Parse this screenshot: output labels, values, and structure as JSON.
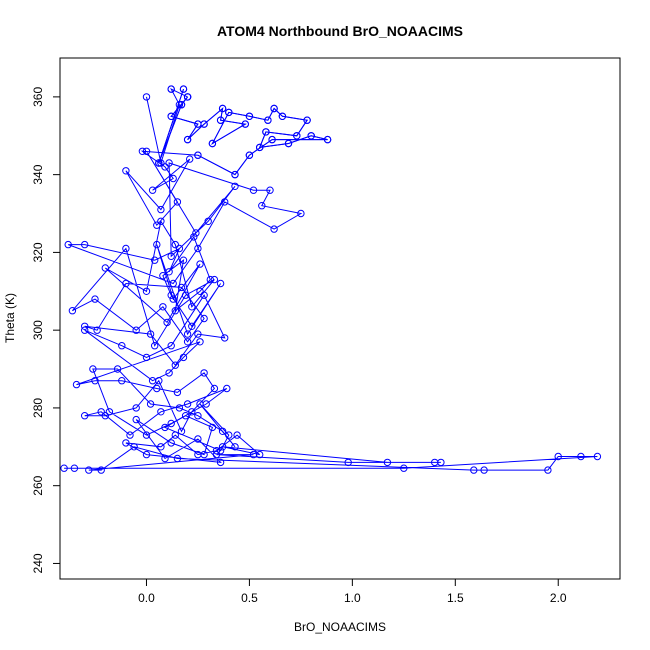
{
  "chart_data": {
    "type": "scatter",
    "title": "ATOM4 Northbound BrO_NOAACIMS",
    "xlabel": "BrO_NOAACIMS",
    "ylabel": "Theta (K)",
    "xlim": [
      -0.42,
      2.3
    ],
    "ylim": [
      236,
      370
    ],
    "x_ticks": [
      0.0,
      0.5,
      1.0,
      1.5,
      2.0
    ],
    "x_tick_labels": [
      "0.0",
      "0.5",
      "1.0",
      "1.5",
      "2.0"
    ],
    "y_ticks": [
      240,
      260,
      280,
      300,
      320,
      340,
      360
    ],
    "y_tick_labels": [
      "240",
      "260",
      "280",
      "300",
      "320",
      "340",
      "360"
    ],
    "marker": "open-circle",
    "connected": true,
    "color": "#0000ff",
    "grid": false,
    "series": [
      {
        "x": [
          0.18,
          0.06,
          0.17,
          0.2,
          0.12,
          0.25,
          0.2,
          0.28,
          0.37,
          0.36,
          0.48,
          0.32,
          0.4,
          0.5,
          0.59,
          0.62,
          0.66,
          0.78,
          0.73,
          0.58,
          0.55,
          0.69,
          0.8,
          0.88,
          0.61,
          0.5,
          0.43,
          0.25,
          -0.02,
          0.09,
          0.13,
          0.03,
          0.21,
          0.07,
          -0.1,
          0.05,
          0.15,
          0.0,
          0.24,
          0.43,
          0.3,
          0.12,
          0.11,
          0.52,
          0.6,
          0.56,
          0.75,
          0.62,
          0.38,
          0.25,
          0.13,
          -0.38,
          -0.3,
          0.04,
          0.16,
          0.11,
          0.23,
          0.31,
          0.26,
          0.14,
          0.18,
          0.08,
          0.12,
          0.22,
          0.36,
          0.2,
          0.05,
          0.13,
          0.26,
          0.1,
          -0.2,
          0.0,
          0.07,
          0.14,
          0.22,
          0.33,
          0.19,
          0.04,
          -0.1,
          -0.36,
          -0.25,
          -0.05,
          0.08,
          0.2,
          0.28,
          0.17,
          -0.1,
          -0.24,
          -0.3,
          0.02,
          0.14,
          0.25,
          0.38,
          0.28,
          0.12,
          0.0,
          -0.12,
          -0.3,
          0.03,
          0.11,
          0.18,
          0.26,
          -0.34,
          -0.25,
          -0.12,
          0.05,
          0.15,
          0.28,
          0.33,
          0.22,
          0.17,
          0.06,
          -0.05,
          -0.2,
          -0.3,
          -0.22,
          -0.08,
          0.07,
          0.2,
          0.39,
          0.29,
          0.12,
          0.0,
          -0.18,
          -0.26,
          -0.14,
          0.02,
          0.16,
          0.25,
          0.37,
          0.43,
          0.26,
          0.4,
          0.36,
          0.09,
          0.19,
          0.32,
          0.28,
          0.12,
          -0.05,
          0.09,
          0.25,
          0.36,
          0.0,
          -0.1,
          0.07,
          0.14,
          0.25,
          0.34,
          0.44,
          0.55,
          0.37,
          1.17,
          1.43,
          1.4,
          0.98,
          0.34,
          0.52,
          -0.28,
          -0.22,
          -0.06,
          0.15,
          1.59,
          1.64,
          1.95,
          2.0,
          2.11,
          2.19,
          1.25,
          -0.4,
          -0.35
        ]
      },
      {
        "x": [
          0.0,
          0.07,
          0.16,
          0.12,
          0.2,
          0.12
        ],
        "y": [
          360,
          343,
          358,
          362,
          360,
          362
        ]
      }
    ],
    "points": [
      {
        "x": 0.18,
        "y": 362
      },
      {
        "x": 0.06,
        "y": 343
      },
      {
        "x": 0.17,
        "y": 358
      },
      {
        "x": 0.2,
        "y": 360
      },
      {
        "x": 0.12,
        "y": 355
      },
      {
        "x": 0.25,
        "y": 353
      },
      {
        "x": 0.2,
        "y": 349
      },
      {
        "x": 0.28,
        "y": 353
      },
      {
        "x": 0.37,
        "y": 357
      },
      {
        "x": 0.36,
        "y": 354
      },
      {
        "x": 0.48,
        "y": 353
      },
      {
        "x": 0.32,
        "y": 348
      },
      {
        "x": 0.4,
        "y": 356
      },
      {
        "x": 0.5,
        "y": 355
      },
      {
        "x": 0.59,
        "y": 354
      },
      {
        "x": 0.62,
        "y": 357
      },
      {
        "x": 0.66,
        "y": 355
      },
      {
        "x": 0.78,
        "y": 354
      },
      {
        "x": 0.73,
        "y": 350
      },
      {
        "x": 0.58,
        "y": 351
      },
      {
        "x": 0.55,
        "y": 347
      },
      {
        "x": 0.69,
        "y": 348
      },
      {
        "x": 0.8,
        "y": 350
      },
      {
        "x": 0.88,
        "y": 349
      },
      {
        "x": 0.61,
        "y": 349
      },
      {
        "x": 0.5,
        "y": 345
      },
      {
        "x": 0.43,
        "y": 340
      },
      {
        "x": 0.25,
        "y": 345
      }
    ],
    "y_values": [
      362,
      343,
      358,
      360,
      355,
      353,
      349,
      353,
      357,
      354,
      353,
      348,
      356,
      355,
      354,
      357,
      355,
      354,
      350,
      351,
      347,
      348,
      350,
      349,
      349,
      345,
      340,
      345,
      346,
      342,
      339,
      336,
      344,
      331,
      341,
      327,
      333,
      346,
      325,
      337,
      328,
      319,
      343,
      336,
      336,
      332,
      330,
      326,
      333,
      321,
      312,
      322,
      322,
      318,
      321,
      315,
      324,
      313,
      310,
      305,
      318,
      314,
      309,
      301,
      312,
      299,
      322,
      308,
      317,
      302,
      316,
      310,
      328,
      322,
      306,
      313,
      309,
      296,
      321,
      305,
      308,
      300,
      306,
      297,
      303,
      311,
      312,
      300,
      301,
      299,
      291,
      299,
      298,
      309,
      296,
      293,
      296,
      300,
      287,
      289,
      293,
      297,
      286,
      287,
      287,
      285,
      284,
      289,
      285,
      279,
      274,
      287,
      280,
      278,
      278,
      279,
      273,
      279,
      281,
      285,
      281,
      276,
      273,
      279,
      290,
      290,
      281,
      280,
      278,
      274,
      270,
      281,
      273,
      269,
      275,
      278,
      275,
      268,
      271,
      277,
      267,
      272,
      266,
      268,
      271,
      270,
      273,
      268,
      269,
      273,
      268,
      270,
      266,
      266,
      266,
      266,
      268,
      268,
      264,
      264,
      270,
      267,
      264,
      264,
      264,
      267.5,
      267.5,
      267.5,
      264.5,
      264.5,
      264.5
    ]
  }
}
